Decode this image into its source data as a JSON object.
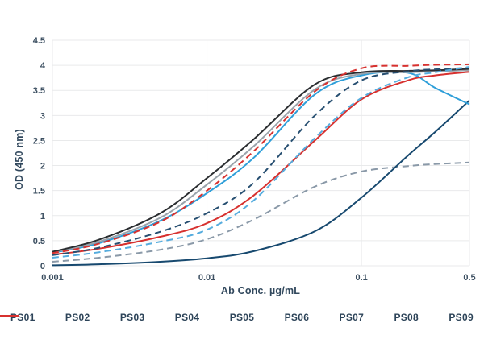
{
  "chart_data": {
    "type": "line",
    "title": "",
    "xlabel": "Ab Conc. µg/mL",
    "ylabel": "OD (450 nm)",
    "x_scale": "log",
    "xlim": [
      0.001,
      0.5
    ],
    "ylim": [
      0,
      4.5
    ],
    "grid": true,
    "legend_position": "bottom",
    "gridline_color": "#e9eaeb",
    "xticks": {
      "values": [
        0.001,
        0.01,
        0.1,
        0.5
      ],
      "labels": [
        "0.001",
        "0.01",
        "0.1",
        "0.5"
      ]
    },
    "yticks": [
      0,
      0.5,
      1,
      1.5,
      2,
      2.5,
      3,
      3.5,
      4,
      4.5
    ],
    "x": [
      0.001,
      0.002,
      0.005,
      0.01,
      0.02,
      0.05,
      0.1,
      0.2,
      0.3,
      0.5
    ],
    "series": [
      {
        "name": "PS01",
        "color": "#8a99a8",
        "dash": true,
        "values": [
          0.08,
          0.16,
          0.32,
          0.53,
          0.92,
          1.58,
          1.88,
          1.99,
          2.03,
          2.06
        ]
      },
      {
        "name": "PS02",
        "color": "#17496f",
        "dash": false,
        "values": [
          0.01,
          0.03,
          0.08,
          0.15,
          0.29,
          0.69,
          1.36,
          2.2,
          2.67,
          3.3
        ]
      },
      {
        "name": "PS03",
        "color": "#2f9fd9",
        "dash": false,
        "values": [
          0.26,
          0.45,
          0.9,
          1.45,
          2.15,
          3.42,
          3.8,
          3.85,
          3.55,
          3.22
        ]
      },
      {
        "name": "PS04",
        "color": "#9aa3ab",
        "dash": false,
        "values": [
          0.27,
          0.48,
          0.96,
          1.62,
          2.38,
          3.52,
          3.83,
          3.86,
          3.88,
          3.9
        ]
      },
      {
        "name": "PS05",
        "color": "#2a2d30",
        "dash": false,
        "values": [
          0.28,
          0.52,
          1.05,
          1.75,
          2.52,
          3.62,
          3.86,
          3.89,
          3.9,
          3.93
        ]
      },
      {
        "name": "PS06",
        "color": "#d7312f",
        "dash": false,
        "values": [
          0.22,
          0.34,
          0.58,
          0.85,
          1.4,
          2.5,
          3.32,
          3.7,
          3.8,
          3.87
        ]
      },
      {
        "name": "PS07",
        "color": "#274f71",
        "dash": true,
        "values": [
          0.21,
          0.36,
          0.68,
          1.05,
          1.65,
          3.0,
          3.7,
          3.88,
          3.92,
          3.95
        ]
      },
      {
        "name": "PS08",
        "color": "#55acde",
        "dash": true,
        "values": [
          0.16,
          0.27,
          0.48,
          0.72,
          1.3,
          2.55,
          3.35,
          3.76,
          3.86,
          3.97
        ]
      },
      {
        "name": "PS09",
        "color": "#d7312f",
        "dash": true,
        "values": [
          0.25,
          0.44,
          0.88,
          1.5,
          2.28,
          3.48,
          3.94,
          3.99,
          4.01,
          4.02
        ]
      }
    ]
  }
}
